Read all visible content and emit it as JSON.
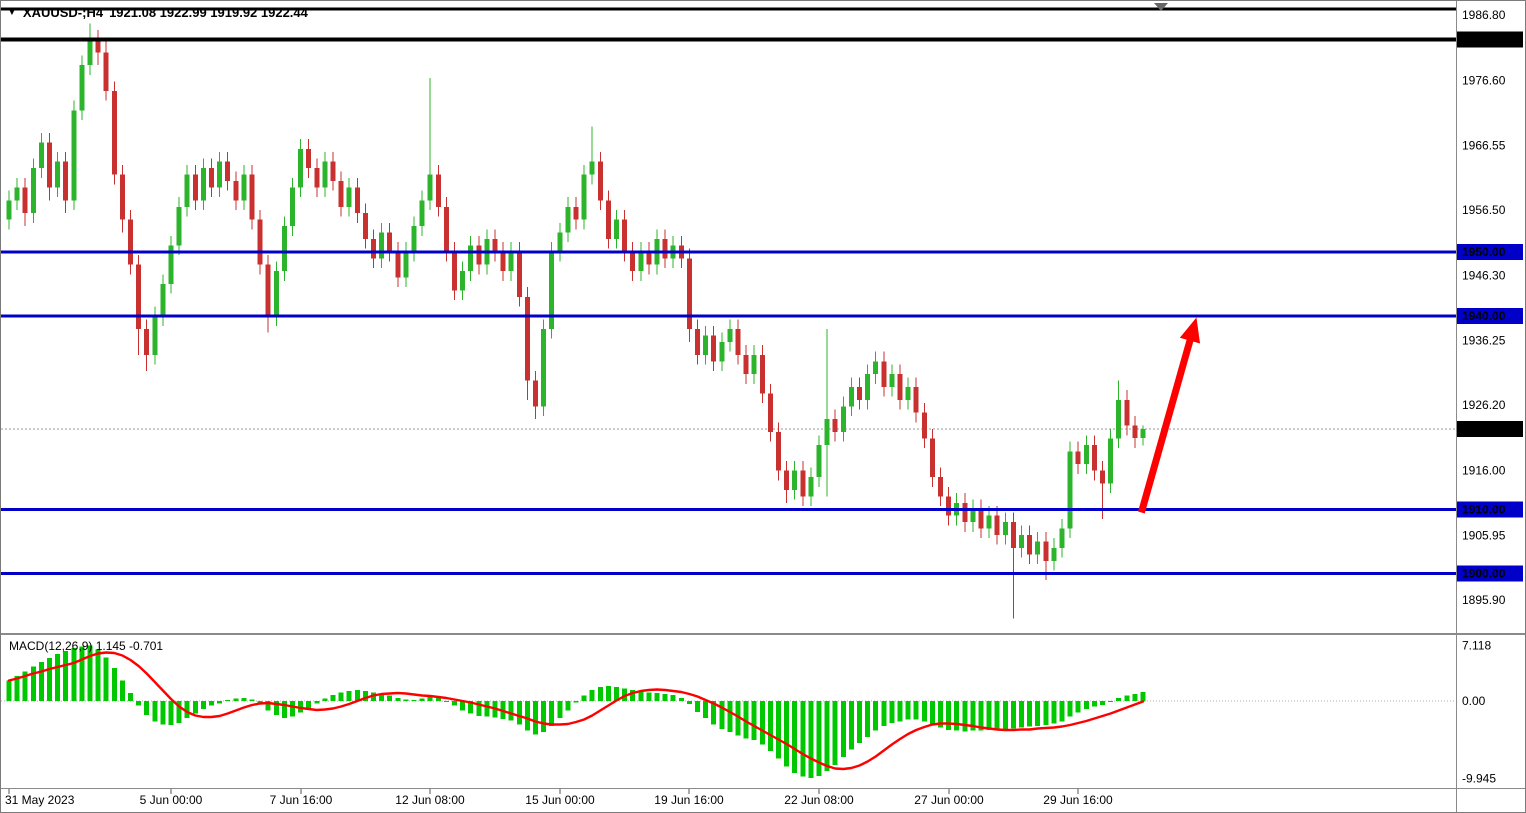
{
  "header": {
    "symbol_period": "XAUUSD-;H4",
    "ohlc": "1921.08 1922.99 1919.92 1922.44"
  },
  "colors": {
    "up": "#2DB42D",
    "down": "#C93030",
    "level_blue": "#0000C8",
    "level_black": "#000000",
    "arrow": "#FF0000",
    "macd_histogram": "#00C800",
    "macd_signal": "#FF0000",
    "badge_text": "#FFFFFF"
  },
  "chart_data": [
    {
      "type": "candlestick",
      "title": "XAUUSD-;H4",
      "symbol": "XAUUSD-",
      "timeframe": "H4",
      "ohlc_current": {
        "open": 1921.08,
        "high": 1922.99,
        "low": 1919.92,
        "close": 1922.44
      },
      "current_price": 1922.44,
      "current_price_label": "1922.44",
      "ylim": [
        1891,
        1988
      ],
      "grid": false,
      "y_ticks": [
        "1986.80",
        "1976.60",
        "1966.55",
        "1956.50",
        "1946.30",
        "1936.25",
        "1926.20",
        "1916.00",
        "1905.95",
        "1895.90"
      ],
      "x_labels": [
        {
          "index": 0,
          "label": "31 May 2023"
        },
        {
          "index": 20,
          "label": "5 Jun 00:00"
        },
        {
          "index": 36,
          "label": "7 Jun 16:00"
        },
        {
          "index": 52,
          "label": "12 Jun 08:00"
        },
        {
          "index": 68,
          "label": "15 Jun 00:00"
        },
        {
          "index": 84,
          "label": "19 Jun 16:00"
        },
        {
          "index": 100,
          "label": "22 Jun 08:00"
        },
        {
          "index": 116,
          "label": "27 Jun 00:00"
        },
        {
          "index": 132,
          "label": "29 Jun 16:00"
        }
      ],
      "levels": [
        {
          "price": 1987.7,
          "label": "",
          "color": "#000000",
          "width": 3
        },
        {
          "price": 1983.0,
          "label": "1983.00",
          "color": "#000000",
          "width": 4
        },
        {
          "price": 1950.0,
          "label": "1950.00",
          "color": "#0000C8",
          "width": 3
        },
        {
          "price": 1940.0,
          "label": "1940.00",
          "color": "#0000C8",
          "width": 3
        },
        {
          "price": 1910.0,
          "label": "1910.00",
          "color": "#0000C8",
          "width": 3
        },
        {
          "price": 1900.0,
          "label": "1900.00",
          "color": "#0000C8",
          "width": 3
        }
      ],
      "annotation_arrow": {
        "from": {
          "index": 139.8,
          "price": 1909.5
        },
        "to": {
          "index": 146.6,
          "price": 1939.8
        },
        "color": "#FF0000"
      },
      "candles": [
        [
          1955,
          1959.5,
          1953.5,
          1958
        ],
        [
          1958,
          1961.5,
          1956.5,
          1960
        ],
        [
          1960,
          1961.5,
          1954,
          1956
        ],
        [
          1956,
          1964.5,
          1954.5,
          1963
        ],
        [
          1963,
          1968.5,
          1961.5,
          1967
        ],
        [
          1967,
          1968.5,
          1958,
          1960
        ],
        [
          1960,
          1965.5,
          1958.5,
          1964
        ],
        [
          1964,
          1965.5,
          1956,
          1958
        ],
        [
          1958,
          1973.5,
          1956.5,
          1972
        ],
        [
          1972,
          1980.5,
          1970.5,
          1979
        ],
        [
          1979,
          1985.5,
          1977.5,
          1983
        ],
        [
          1983,
          1984.5,
          1979,
          1981
        ],
        [
          1981,
          1983,
          1973.5,
          1975
        ],
        [
          1975,
          1976.5,
          1960.5,
          1962
        ],
        [
          1962,
          1963.5,
          1953,
          1955
        ],
        [
          1955,
          1956.5,
          1946.5,
          1948
        ],
        [
          1948,
          1949.5,
          1934,
          1938
        ],
        [
          1938,
          1939.5,
          1931.5,
          1934
        ],
        [
          1934,
          1941.5,
          1932.5,
          1940
        ],
        [
          1940,
          1946.5,
          1938.5,
          1945
        ],
        [
          1945,
          1952.5,
          1943.5,
          1951
        ],
        [
          1951,
          1958.5,
          1949.5,
          1957
        ],
        [
          1957,
          1963.5,
          1955.5,
          1962
        ],
        [
          1962,
          1963.5,
          1956.5,
          1958
        ],
        [
          1958,
          1964.5,
          1956.5,
          1963
        ],
        [
          1963,
          1964.5,
          1958.5,
          1960
        ],
        [
          1960,
          1965.5,
          1958.5,
          1964
        ],
        [
          1964,
          1965.5,
          1959.5,
          1961
        ],
        [
          1961,
          1962.5,
          1956.5,
          1958
        ],
        [
          1958,
          1963.5,
          1956.5,
          1962
        ],
        [
          1962,
          1963.5,
          1953.5,
          1955
        ],
        [
          1955,
          1956.5,
          1946.5,
          1948
        ],
        [
          1948,
          1949.5,
          1937.5,
          1940
        ],
        [
          1940,
          1948.5,
          1938.5,
          1947
        ],
        [
          1947,
          1955.5,
          1945.5,
          1954
        ],
        [
          1954,
          1961.5,
          1952.5,
          1960
        ],
        [
          1960,
          1967.5,
          1958.5,
          1966
        ],
        [
          1966,
          1967.5,
          1961.5,
          1963
        ],
        [
          1963,
          1964.5,
          1958.5,
          1960
        ],
        [
          1960,
          1965.5,
          1958.5,
          1964
        ],
        [
          1964,
          1965.5,
          1959.5,
          1961
        ],
        [
          1961,
          1962.5,
          1955.5,
          1957
        ],
        [
          1957,
          1961.5,
          1955.5,
          1960
        ],
        [
          1960,
          1961.5,
          1954.5,
          1956
        ],
        [
          1956,
          1957.5,
          1950.5,
          1952
        ],
        [
          1952,
          1953.5,
          1947.5,
          1949
        ],
        [
          1949,
          1954.5,
          1947.5,
          1953
        ],
        [
          1953,
          1954.5,
          1948.5,
          1950
        ],
        [
          1950,
          1951.5,
          1944.5,
          1946
        ],
        [
          1946,
          1951.5,
          1944.5,
          1950
        ],
        [
          1950,
          1955.5,
          1948.5,
          1954
        ],
        [
          1954,
          1959.5,
          1952.5,
          1958
        ],
        [
          1958,
          1977,
          1956.5,
          1962
        ],
        [
          1962,
          1963.5,
          1955.5,
          1957
        ],
        [
          1957,
          1958.5,
          1948.5,
          1950
        ],
        [
          1950,
          1951.5,
          1942.5,
          1944
        ],
        [
          1944,
          1948.5,
          1942.5,
          1947
        ],
        [
          1947,
          1952.5,
          1945.5,
          1951
        ],
        [
          1951,
          1952.5,
          1946.5,
          1948
        ],
        [
          1948,
          1953.5,
          1946.5,
          1952
        ],
        [
          1952,
          1953.5,
          1948.5,
          1950
        ],
        [
          1950,
          1951.5,
          1945.5,
          1947
        ],
        [
          1947,
          1951.5,
          1945.5,
          1950
        ],
        [
          1950,
          1951.5,
          1941.5,
          1943
        ],
        [
          1943,
          1944.5,
          1927,
          1930
        ],
        [
          1930,
          1931.5,
          1924,
          1926
        ],
        [
          1926,
          1939.5,
          1924.5,
          1938
        ],
        [
          1938,
          1951.5,
          1936.5,
          1950
        ],
        [
          1950,
          1954.5,
          1948.5,
          1953
        ],
        [
          1953,
          1958.5,
          1951.5,
          1957
        ],
        [
          1957,
          1958.5,
          1953.5,
          1955
        ],
        [
          1955,
          1963.5,
          1953.5,
          1962
        ],
        [
          1962,
          1969.5,
          1960.5,
          1964
        ],
        [
          1964,
          1965.5,
          1956.5,
          1958
        ],
        [
          1958,
          1959.5,
          1950.5,
          1952
        ],
        [
          1952,
          1956.5,
          1950.5,
          1955
        ],
        [
          1955,
          1956.5,
          1948.5,
          1950
        ],
        [
          1950,
          1951.5,
          1945.5,
          1947
        ],
        [
          1947,
          1951.5,
          1945.5,
          1950
        ],
        [
          1950,
          1951.5,
          1946.5,
          1948
        ],
        [
          1948,
          1953.5,
          1946.5,
          1952
        ],
        [
          1952,
          1953.5,
          1947.5,
          1949
        ],
        [
          1949,
          1952.5,
          1947.5,
          1951
        ],
        [
          1951,
          1952.5,
          1947.5,
          1949
        ],
        [
          1949,
          1950.5,
          1936,
          1938
        ],
        [
          1938,
          1939.5,
          1932.5,
          1934
        ],
        [
          1934,
          1938.5,
          1932.5,
          1937
        ],
        [
          1937,
          1938.5,
          1931.5,
          1933
        ],
        [
          1933,
          1937.5,
          1931.5,
          1936
        ],
        [
          1936,
          1939.5,
          1934.5,
          1938
        ],
        [
          1938,
          1939.5,
          1932.5,
          1934
        ],
        [
          1934,
          1935.5,
          1929.5,
          1931
        ],
        [
          1931,
          1935.5,
          1929.5,
          1934
        ],
        [
          1934,
          1935.5,
          1926.5,
          1928
        ],
        [
          1928,
          1929.5,
          1920.5,
          1922
        ],
        [
          1922,
          1923.5,
          1914.5,
          1916
        ],
        [
          1916,
          1917.5,
          1911,
          1913
        ],
        [
          1913,
          1917.5,
          1911.5,
          1916
        ],
        [
          1916,
          1917.5,
          1910.5,
          1912
        ],
        [
          1912,
          1916.5,
          1910.5,
          1915
        ],
        [
          1915,
          1921.5,
          1913.5,
          1920
        ],
        [
          1920,
          1938,
          1912,
          1924
        ],
        [
          1924,
          1925.5,
          1920.5,
          1922
        ],
        [
          1922,
          1927.5,
          1920.5,
          1926
        ],
        [
          1926,
          1930.5,
          1924.5,
          1929
        ],
        [
          1929,
          1930.5,
          1925.5,
          1927
        ],
        [
          1927,
          1932.5,
          1925.5,
          1931
        ],
        [
          1931,
          1934.5,
          1929.5,
          1933
        ],
        [
          1933,
          1934.5,
          1927.5,
          1929
        ],
        [
          1929,
          1932.5,
          1927.5,
          1931
        ],
        [
          1931,
          1932.5,
          1925.5,
          1927
        ],
        [
          1927,
          1930.5,
          1925.5,
          1929
        ],
        [
          1929,
          1930.5,
          1923.5,
          1925
        ],
        [
          1925,
          1926.5,
          1919.5,
          1921
        ],
        [
          1921,
          1922.5,
          1913.5,
          1915
        ],
        [
          1915,
          1916.5,
          1910.5,
          1912
        ],
        [
          1912,
          1913.5,
          1907.5,
          1909
        ],
        [
          1909,
          1912.5,
          1907.5,
          1911
        ],
        [
          1911,
          1912.5,
          1906.5,
          1908
        ],
        [
          1908,
          1911.5,
          1906.5,
          1910
        ],
        [
          1910,
          1911.5,
          1905.5,
          1907
        ],
        [
          1907,
          1910.5,
          1905.5,
          1909
        ],
        [
          1909,
          1910.5,
          1904.5,
          1906
        ],
        [
          1906,
          1909.5,
          1904.5,
          1908
        ],
        [
          1908,
          1909.5,
          1893,
          1904
        ],
        [
          1904,
          1907.5,
          1902.5,
          1906
        ],
        [
          1906,
          1907.5,
          1901.5,
          1903
        ],
        [
          1903,
          1906.5,
          1901.5,
          1905
        ],
        [
          1905,
          1906.5,
          1899,
          1902
        ],
        [
          1902,
          1905.5,
          1900.5,
          1904
        ],
        [
          1904,
          1908.5,
          1902.5,
          1907
        ],
        [
          1907,
          1920.5,
          1905.5,
          1919
        ],
        [
          1919,
          1920.5,
          1915.5,
          1917
        ],
        [
          1917,
          1921.5,
          1915.5,
          1920
        ],
        [
          1920,
          1921.5,
          1914.5,
          1916
        ],
        [
          1916,
          1917.5,
          1908.5,
          1914
        ],
        [
          1914,
          1922.5,
          1912.5,
          1921
        ],
        [
          1921,
          1930,
          1919.5,
          1927
        ],
        [
          1927,
          1928.5,
          1921.5,
          1923
        ],
        [
          1923,
          1924.5,
          1919.5,
          1921.08
        ],
        [
          1921.08,
          1922.99,
          1919.92,
          1922.44
        ]
      ]
    },
    {
      "type": "bar",
      "name": "MACD(12,26,9)",
      "display_label": "MACD(12,26,9) 1.145 -0.701",
      "current": {
        "macd": 1.145,
        "signal": -0.701
      },
      "signal_period": 9,
      "ylim": [
        -9.945,
        7.118
      ],
      "scale": [
        {
          "value": 7.118,
          "label": "7.118"
        },
        {
          "value": 0,
          "label": "0.00"
        },
        {
          "value": -9.945,
          "label": "-9.945"
        }
      ],
      "values": [
        2.6,
        3.2,
        3.8,
        4.4,
        5.0,
        5.5,
        6.0,
        6.4,
        6.8,
        7.0,
        7.1,
        6.6,
        5.6,
        4.2,
        2.6,
        1.0,
        -0.6,
        -1.8,
        -2.6,
        -3.0,
        -3.1,
        -2.8,
        -2.2,
        -1.6,
        -1.0,
        -0.6,
        -0.3,
        0.1,
        0.3,
        0.4,
        0.2,
        -0.4,
        -1.2,
        -1.8,
        -2.2,
        -2.0,
        -1.5,
        -0.9,
        -0.3,
        0.3,
        0.8,
        1.1,
        1.3,
        1.4,
        1.3,
        1.1,
        0.9,
        0.7,
        0.4,
        0.2,
        0.1,
        0.3,
        0.5,
        0.4,
        0.0,
        -0.6,
        -1.2,
        -1.6,
        -1.9,
        -2.0,
        -2.1,
        -2.3,
        -2.5,
        -3.0,
        -3.8,
        -4.3,
        -4.0,
        -3.2,
        -2.2,
        -1.2,
        -0.2,
        0.7,
        1.4,
        1.8,
        1.9,
        1.8,
        1.6,
        1.4,
        1.2,
        1.1,
        1.0,
        0.9,
        0.8,
        0.4,
        -0.4,
        -1.4,
        -2.2,
        -3.0,
        -3.6,
        -4.0,
        -4.4,
        -4.8,
        -5.0,
        -5.6,
        -6.4,
        -7.4,
        -8.4,
        -9.2,
        -9.7,
        -9.9,
        -9.6,
        -9.0,
        -8.2,
        -7.2,
        -6.2,
        -5.4,
        -4.6,
        -3.8,
        -3.2,
        -2.8,
        -2.6,
        -2.4,
        -2.4,
        -2.6,
        -3.0,
        -3.4,
        -3.7,
        -3.8,
        -3.9,
        -3.8,
        -3.8,
        -3.7,
        -3.6,
        -3.6,
        -3.5,
        -3.4,
        -3.3,
        -3.2,
        -3.1,
        -2.9,
        -2.6,
        -2.0,
        -1.5,
        -1.0,
        -0.7,
        -0.5,
        -0.1,
        0.4,
        0.7,
        0.9,
        1.145
      ]
    }
  ]
}
